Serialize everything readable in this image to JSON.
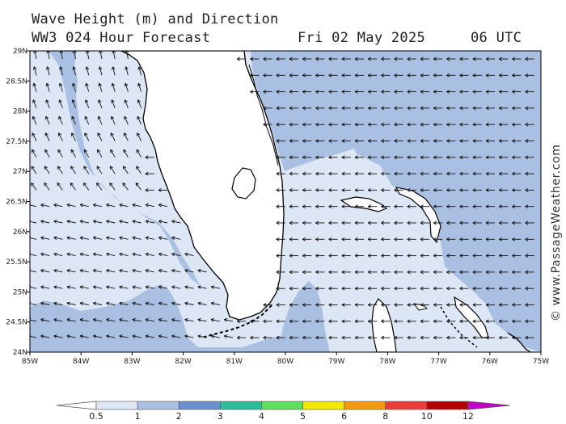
{
  "header": {
    "line1": "Wave Height (m) and Direction",
    "line2_left": "WW3 024 Hour Forecast",
    "date": "Fri 02 May 2025",
    "time": "06 UTC"
  },
  "map": {
    "lon_labels": [
      "85W",
      "84W",
      "83W",
      "82W",
      "81W",
      "80W",
      "79W",
      "78W",
      "77W",
      "76W",
      "75W"
    ],
    "lat_labels": [
      "29N",
      "28.5N",
      "28N",
      "27.5N",
      "27N",
      "26.5N",
      "26N",
      "25.5N",
      "25N",
      "24.5N",
      "24N"
    ],
    "lon_range": [
      -85,
      -75
    ],
    "lat_range": [
      24,
      29
    ],
    "wave_arrow_direction": "toward west / northwest",
    "land_color": "#ffffff",
    "coast_color": "#000000"
  },
  "colorbar": {
    "labels": [
      "0.5",
      "1",
      "2",
      "3",
      "4",
      "5",
      "6",
      "8",
      "10",
      "12"
    ],
    "colors": [
      "#dde6f4",
      "#a9c0e2",
      "#6b90cd",
      "#2bbf9a",
      "#5de05d",
      "#f2e800",
      "#f59a10",
      "#ec3b3b",
      "#b50000",
      "#c800c8"
    ],
    "low_color": "#ffffff"
  },
  "credit": "© www.PassageWeather.com"
}
